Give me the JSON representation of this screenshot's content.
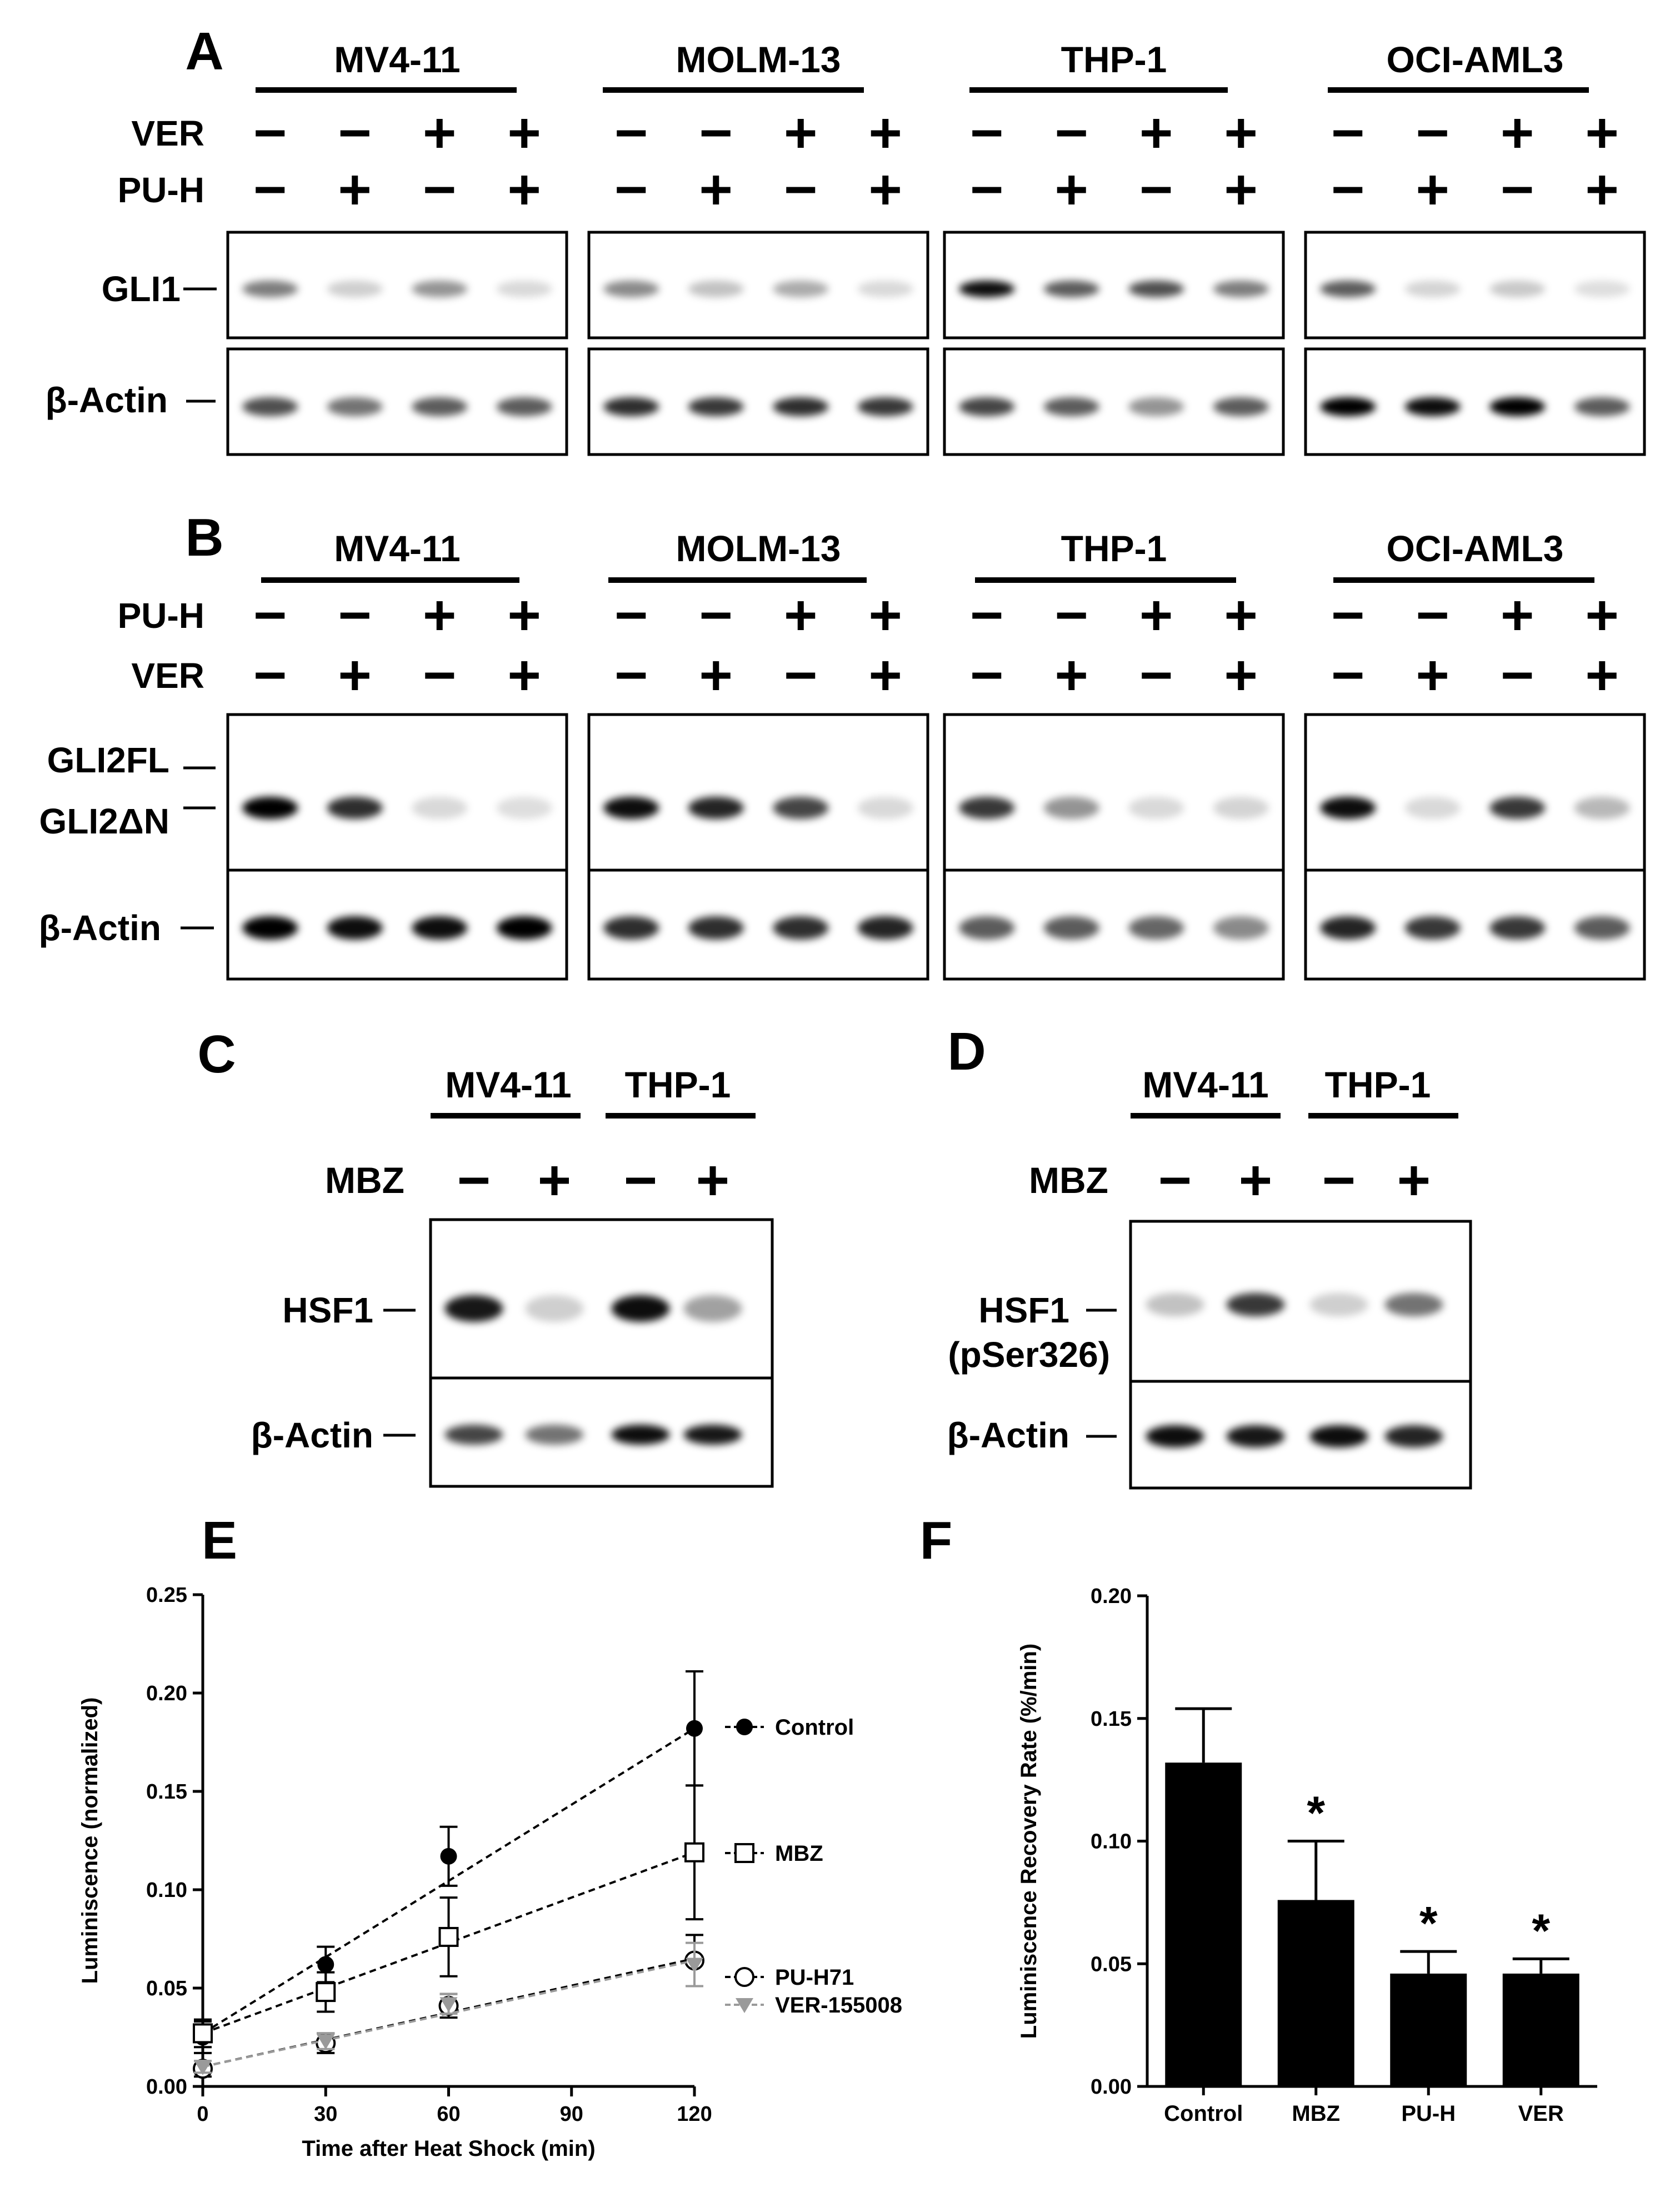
{
  "panels": {
    "A": {
      "letter": "A",
      "cell_lines": [
        "MV4-11",
        "MOLM-13",
        "THP-1",
        "OCI-AML3"
      ],
      "treatments": [
        {
          "label": "VER",
          "signs": [
            "−",
            "−",
            "+",
            "+"
          ]
        },
        {
          "label": "PU-H",
          "signs": [
            "−",
            "+",
            "−",
            "+"
          ]
        }
      ],
      "rows": [
        {
          "label": "GLI1",
          "intensity": [
            [
              0.45,
              0.1,
              0.35,
              0.05
            ],
            [
              0.4,
              0.15,
              0.25,
              0.05
            ],
            [
              0.95,
              0.6,
              0.65,
              0.45
            ],
            [
              0.6,
              0.08,
              0.12,
              0.03
            ]
          ]
        },
        {
          "label": "β-Actin",
          "intensity": [
            [
              0.65,
              0.5,
              0.6,
              0.6
            ],
            [
              0.8,
              0.75,
              0.8,
              0.75
            ],
            [
              0.7,
              0.6,
              0.35,
              0.6
            ],
            [
              1.0,
              0.95,
              1.0,
              0.6
            ]
          ]
        }
      ]
    },
    "B": {
      "letter": "B",
      "cell_lines": [
        "MV4-11",
        "MOLM-13",
        "THP-1",
        "OCI-AML3"
      ],
      "treatments": [
        {
          "label": "PU-H",
          "signs": [
            "−",
            "−",
            "+",
            "+"
          ]
        },
        {
          "label": "VER",
          "signs": [
            "−",
            "+",
            "−",
            "+"
          ]
        }
      ],
      "rows": [
        {
          "label": "GLI2FL",
          "label2": "GLI2ΔN",
          "intensity": [
            [
              1.0,
              0.8,
              0.05,
              0.03
            ],
            [
              0.95,
              0.85,
              0.7,
              0.05
            ],
            [
              0.75,
              0.35,
              0.06,
              0.08
            ],
            [
              0.95,
              0.05,
              0.75,
              0.2
            ]
          ]
        },
        {
          "label": "β-Actin",
          "intensity": [
            [
              1.0,
              0.95,
              0.95,
              1.0
            ],
            [
              0.8,
              0.8,
              0.8,
              0.85
            ],
            [
              0.6,
              0.6,
              0.55,
              0.4
            ],
            [
              0.85,
              0.75,
              0.75,
              0.6
            ]
          ]
        }
      ]
    },
    "C": {
      "letter": "C",
      "cell_lines": [
        "MV4-11",
        "THP-1"
      ],
      "treatment": {
        "label": "MBZ",
        "signs": [
          "−",
          "+",
          "−",
          "+"
        ]
      },
      "rows": [
        {
          "label": "HSF1",
          "intensity": [
            0.9,
            0.1,
            0.95,
            0.3
          ]
        },
        {
          "label": "β-Actin",
          "intensity": [
            0.7,
            0.5,
            0.95,
            0.9
          ]
        }
      ]
    },
    "D": {
      "letter": "D",
      "cell_lines": [
        "MV4-11",
        "THP-1"
      ],
      "treatment": {
        "label": "MBZ",
        "signs": [
          "−",
          "+",
          "−",
          "+"
        ]
      },
      "rows": [
        {
          "label": "HSF1",
          "label2": "(pSer326)",
          "intensity": [
            0.15,
            0.75,
            0.1,
            0.5
          ]
        },
        {
          "label": "β-Actin",
          "intensity": [
            0.95,
            0.9,
            0.95,
            0.85
          ]
        }
      ]
    },
    "E": {
      "letter": "E"
    },
    "F": {
      "letter": "F"
    }
  },
  "chart_data": [
    {
      "type": "line",
      "xlabel": "Time after Heat Shock (min)",
      "ylabel": "Luminiscence (normalized)",
      "xlim": [
        0,
        120
      ],
      "ylim": [
        0,
        0.25
      ],
      "xticks": [
        0,
        30,
        60,
        90,
        120
      ],
      "yticks": [
        0.0,
        0.05,
        0.1,
        0.15,
        0.2,
        0.25
      ],
      "xtick_labels": [
        "0",
        "30",
        "60",
        "90",
        "120"
      ],
      "ytick_labels": [
        "0.00",
        "0.05",
        "0.10",
        "0.15",
        "0.20",
        "0.25"
      ],
      "x": [
        0,
        30,
        60,
        120
      ],
      "legend": "right",
      "series": [
        {
          "name": "Control",
          "marker": "filled-circle",
          "color": "#000000",
          "values": [
            0.025,
            0.062,
            0.117,
            0.182
          ],
          "errors": [
            0.008,
            0.009,
            0.015,
            0.029
          ],
          "fit": [
            0.027,
            0.182
          ]
        },
        {
          "name": "MBZ",
          "marker": "open-square",
          "color": "#000000",
          "values": [
            0.027,
            0.048,
            0.076,
            0.119
          ],
          "errors": [
            0.007,
            0.01,
            0.02,
            0.034
          ],
          "fit": [
            0.027,
            0.119
          ]
        },
        {
          "name": "PU-H71",
          "marker": "open-circle",
          "color": "#000000",
          "values": [
            0.009,
            0.022,
            0.041,
            0.064
          ],
          "errors": [
            0.004,
            0.005,
            0.006,
            0.013
          ],
          "fit": [
            0.01,
            0.065
          ]
        },
        {
          "name": "VER-155008",
          "marker": "filled-triangle-down",
          "color": "#9a9a9a",
          "values": [
            0.01,
            0.023,
            0.042,
            0.062
          ],
          "errors": [
            0.003,
            0.004,
            0.005,
            0.011
          ],
          "fit": [
            0.01,
            0.064
          ]
        }
      ]
    },
    {
      "type": "bar",
      "ylabel": "Luminiscence Recovery Rate (%/min)",
      "ylim": [
        0,
        0.2
      ],
      "yticks": [
        0.0,
        0.05,
        0.1,
        0.15,
        0.2
      ],
      "ytick_labels": [
        "0.00",
        "0.05",
        "0.10",
        "0.15",
        "0.20"
      ],
      "categories": [
        "Control",
        "MBZ",
        "PU-H",
        "VER"
      ],
      "values": [
        0.132,
        0.076,
        0.046,
        0.046
      ],
      "errors": [
        0.022,
        0.024,
        0.009,
        0.006
      ],
      "significance": [
        "",
        "*",
        "*",
        "*"
      ],
      "bar_color": "#000000"
    }
  ]
}
